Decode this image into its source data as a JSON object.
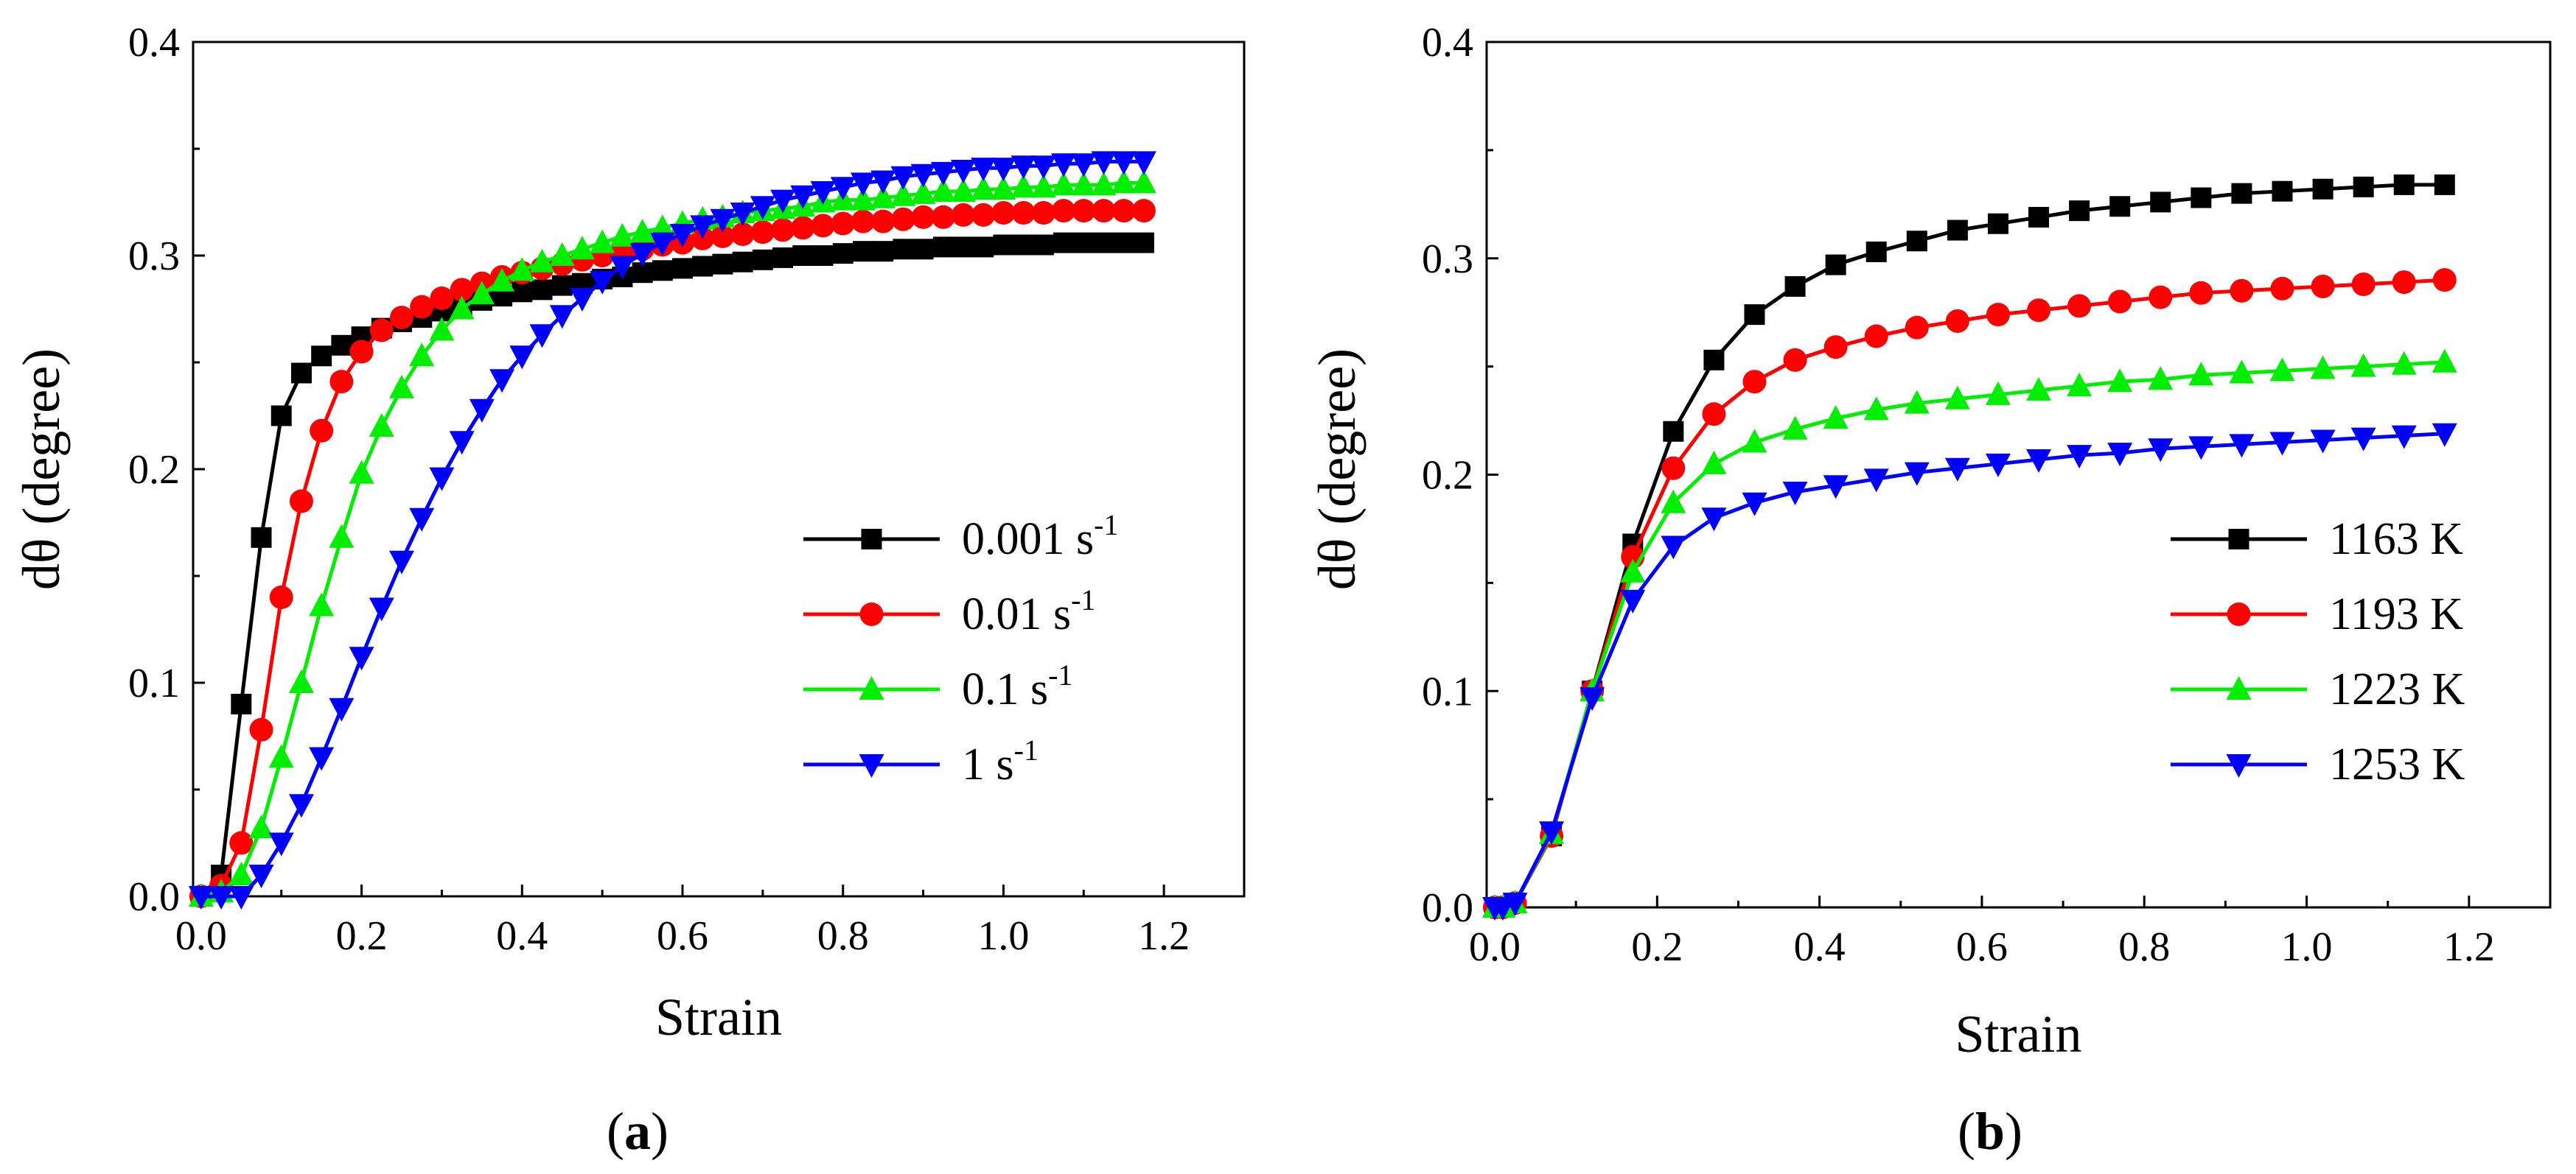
{
  "figure": {
    "panel_a_label": "a",
    "panel_b_label": "b"
  },
  "chart_data": [
    {
      "type": "line",
      "panel": "a",
      "title": "",
      "xlabel": "Strain",
      "ylabel": "dθ (degree)",
      "xlim": [
        -0.01,
        1.3
      ],
      "ylim": [
        0.0,
        0.4
      ],
      "xticks": [
        "0.0",
        "0.2",
        "0.4",
        "0.6",
        "0.8",
        "1.0",
        "1.2"
      ],
      "yticks": [
        "0.0",
        "0.1",
        "0.2",
        "0.3",
        "0.4"
      ],
      "legend_position": "center-right",
      "x": [
        0.0,
        0.025,
        0.05,
        0.075,
        0.1,
        0.125,
        0.15,
        0.175,
        0.2,
        0.225,
        0.25,
        0.275,
        0.3,
        0.325,
        0.35,
        0.375,
        0.4,
        0.425,
        0.45,
        0.475,
        0.5,
        0.525,
        0.55,
        0.575,
        0.6,
        0.625,
        0.65,
        0.675,
        0.7,
        0.725,
        0.75,
        0.775,
        0.8,
        0.825,
        0.85,
        0.875,
        0.9,
        0.925,
        0.95,
        0.975,
        1.0,
        1.025,
        1.05,
        1.075,
        1.1,
        1.125,
        1.15,
        1.175
      ],
      "series": [
        {
          "name": "0.001 s",
          "superscript": "-1",
          "color": "#000000",
          "marker": "square",
          "values": [
            0.0,
            0.01,
            0.09,
            0.168,
            0.225,
            0.245,
            0.253,
            0.258,
            0.262,
            0.266,
            0.269,
            0.271,
            0.274,
            0.276,
            0.279,
            0.281,
            0.283,
            0.284,
            0.286,
            0.287,
            0.289,
            0.29,
            0.292,
            0.293,
            0.294,
            0.295,
            0.296,
            0.297,
            0.298,
            0.299,
            0.3,
            0.3,
            0.301,
            0.302,
            0.302,
            0.303,
            0.303,
            0.304,
            0.304,
            0.304,
            0.305,
            0.305,
            0.305,
            0.306,
            0.306,
            0.306,
            0.306,
            0.306
          ]
        },
        {
          "name": "0.01 s",
          "superscript": "-1",
          "color": "#ff0000",
          "marker": "circle",
          "values": [
            0.0,
            0.005,
            0.025,
            0.078,
            0.14,
            0.185,
            0.218,
            0.241,
            0.255,
            0.265,
            0.271,
            0.276,
            0.28,
            0.284,
            0.287,
            0.29,
            0.292,
            0.294,
            0.296,
            0.298,
            0.3,
            0.302,
            0.303,
            0.305,
            0.306,
            0.308,
            0.309,
            0.31,
            0.311,
            0.312,
            0.313,
            0.314,
            0.315,
            0.316,
            0.316,
            0.317,
            0.318,
            0.318,
            0.319,
            0.319,
            0.32,
            0.32,
            0.32,
            0.321,
            0.321,
            0.321,
            0.321,
            0.321
          ]
        },
        {
          "name": "0.1 s",
          "superscript": "-1",
          "color": "#00ee00",
          "marker": "triangle-up",
          "values": [
            0.0,
            0.002,
            0.01,
            0.032,
            0.065,
            0.1,
            0.136,
            0.168,
            0.198,
            0.22,
            0.238,
            0.253,
            0.265,
            0.275,
            0.282,
            0.288,
            0.293,
            0.297,
            0.3,
            0.303,
            0.306,
            0.309,
            0.311,
            0.313,
            0.315,
            0.317,
            0.318,
            0.32,
            0.321,
            0.322,
            0.323,
            0.325,
            0.326,
            0.326,
            0.327,
            0.328,
            0.329,
            0.33,
            0.33,
            0.331,
            0.331,
            0.332,
            0.332,
            0.333,
            0.333,
            0.333,
            0.334,
            0.334
          ]
        },
        {
          "name": "1 s",
          "superscript": "-1",
          "color": "#0000ff",
          "marker": "triangle-down",
          "values": [
            0.0,
            0.0,
            0.0,
            0.01,
            0.025,
            0.043,
            0.065,
            0.088,
            0.112,
            0.135,
            0.157,
            0.177,
            0.196,
            0.213,
            0.228,
            0.242,
            0.253,
            0.263,
            0.272,
            0.28,
            0.288,
            0.295,
            0.301,
            0.306,
            0.31,
            0.314,
            0.317,
            0.32,
            0.323,
            0.326,
            0.328,
            0.33,
            0.332,
            0.334,
            0.335,
            0.337,
            0.338,
            0.339,
            0.34,
            0.341,
            0.341,
            0.342,
            0.342,
            0.343,
            0.343,
            0.344,
            0.344,
            0.344
          ]
        }
      ]
    },
    {
      "type": "line",
      "panel": "b",
      "title": "",
      "xlabel": "Strain",
      "ylabel": "dθ (degree)",
      "xlim": [
        -0.01,
        1.3
      ],
      "ylim": [
        0.0,
        0.4
      ],
      "xticks": [
        "0.0",
        "0.2",
        "0.4",
        "0.6",
        "0.8",
        "1.0",
        "1.2"
      ],
      "yticks": [
        "0.0",
        "0.1",
        "0.2",
        "0.3",
        "0.4"
      ],
      "legend_position": "lower-right",
      "x": [
        0.0,
        0.01,
        0.025,
        0.07,
        0.12,
        0.17,
        0.22,
        0.27,
        0.32,
        0.37,
        0.42,
        0.47,
        0.52,
        0.57,
        0.62,
        0.67,
        0.72,
        0.77,
        0.82,
        0.87,
        0.92,
        0.97,
        1.02,
        1.07,
        1.12,
        1.17
      ],
      "series": [
        {
          "name": "1163 K",
          "superscript": "",
          "color": "#000000",
          "marker": "square",
          "values": [
            0.0,
            0.0,
            0.002,
            0.033,
            0.1,
            0.168,
            0.22,
            0.253,
            0.274,
            0.287,
            0.297,
            0.303,
            0.308,
            0.313,
            0.316,
            0.319,
            0.322,
            0.324,
            0.326,
            0.328,
            0.33,
            0.331,
            0.332,
            0.333,
            0.334,
            0.334
          ]
        },
        {
          "name": "1193 K",
          "superscript": "",
          "color": "#ff0000",
          "marker": "circle",
          "values": [
            0.0,
            0.0,
            0.002,
            0.033,
            0.1,
            0.162,
            0.203,
            0.228,
            0.243,
            0.253,
            0.259,
            0.264,
            0.268,
            0.271,
            0.274,
            0.276,
            0.278,
            0.28,
            0.282,
            0.284,
            0.285,
            0.286,
            0.287,
            0.288,
            0.289,
            0.29
          ]
        },
        {
          "name": "1223 K",
          "superscript": "",
          "color": "#00ee00",
          "marker": "triangle-up",
          "values": [
            0.0,
            0.0,
            0.002,
            0.034,
            0.1,
            0.155,
            0.187,
            0.205,
            0.215,
            0.221,
            0.226,
            0.23,
            0.233,
            0.235,
            0.237,
            0.239,
            0.241,
            0.243,
            0.244,
            0.246,
            0.247,
            0.248,
            0.249,
            0.25,
            0.251,
            0.252
          ]
        },
        {
          "name": "1253 K",
          "superscript": "",
          "color": "#0000ff",
          "marker": "triangle-down",
          "values": [
            0.0,
            0.0,
            0.002,
            0.035,
            0.097,
            0.142,
            0.167,
            0.18,
            0.187,
            0.192,
            0.195,
            0.198,
            0.201,
            0.203,
            0.205,
            0.207,
            0.209,
            0.21,
            0.212,
            0.213,
            0.214,
            0.215,
            0.216,
            0.217,
            0.218,
            0.219
          ]
        }
      ]
    }
  ]
}
